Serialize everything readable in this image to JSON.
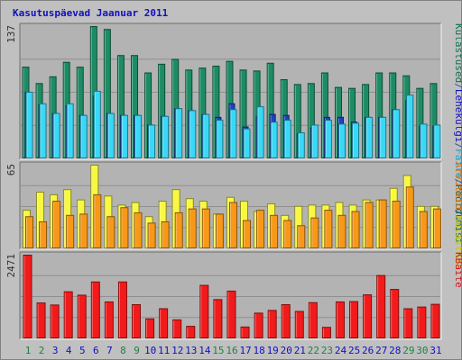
{
  "title": "Kasutuspäevad Jaanuar 2011",
  "colors": {
    "background": "#c0c0c0",
    "panel": "#b3b3b3",
    "frame_border": "#808080",
    "grid": "#909090",
    "title": "#1010c0",
    "weekday_label": "#1010c0",
    "weekend_label": "#208040"
  },
  "chart_data": [
    {
      "type": "bar",
      "panel": "top",
      "ymax_label": "137",
      "ylim": [
        0,
        137
      ],
      "categories": [
        "1",
        "2",
        "3",
        "4",
        "5",
        "6",
        "7",
        "8",
        "9",
        "10",
        "11",
        "12",
        "13",
        "14",
        "15",
        "16",
        "17",
        "18",
        "19",
        "20",
        "21",
        "22",
        "23",
        "24",
        "25",
        "26",
        "27",
        "28",
        "29",
        "30",
        "31"
      ],
      "weekend_days": [
        "1",
        "2",
        "8",
        "9",
        "15",
        "16",
        "22",
        "23",
        "29",
        "30"
      ],
      "legend_labels": [
        {
          "text": "Külastused",
          "color": "#107050"
        },
        {
          "text": "/",
          "color": "#3050a0"
        },
        {
          "text": "Lehekülgi",
          "color": "#1010c0"
        },
        {
          "text": "/",
          "color": "#3050a0"
        },
        {
          "text": "Faile",
          "color": "#20a0c0"
        },
        {
          "text": "/",
          "color": "#3050a0"
        },
        {
          "text": "Pöördumisi",
          "color": "#107050"
        }
      ],
      "series": [
        {
          "name": "Külastused",
          "color": "#1c8c64",
          "values": [
            95,
            78,
            85,
            100,
            95,
            137,
            134,
            107,
            107,
            89,
            98,
            103,
            92,
            94,
            96,
            101,
            92,
            91,
            99,
            82,
            77,
            78,
            89,
            74,
            73,
            77,
            89,
            89,
            86,
            73,
            78
          ]
        },
        {
          "name": "Lehekülgi",
          "color": "#2040c0",
          "values": [
            69,
            56,
            47,
            55,
            45,
            65,
            47,
            45,
            45,
            35,
            44,
            52,
            50,
            46,
            43,
            57,
            33,
            44,
            46,
            45,
            26,
            32,
            43,
            43,
            38,
            43,
            43,
            51,
            60,
            34,
            34
          ]
        },
        {
          "name": "Faile",
          "color": "#38d8f8",
          "values": [
            69,
            57,
            47,
            57,
            45,
            70,
            47,
            45,
            45,
            35,
            44,
            52,
            50,
            46,
            40,
            51,
            31,
            54,
            38,
            40,
            27,
            35,
            40,
            36,
            37,
            43,
            43,
            51,
            66,
            36,
            35
          ]
        }
      ]
    },
    {
      "type": "bar",
      "panel": "middle",
      "ymax_label": "65",
      "ylim": [
        0,
        65
      ],
      "categories": [
        "1",
        "2",
        "3",
        "4",
        "5",
        "6",
        "7",
        "8",
        "9",
        "10",
        "11",
        "12",
        "13",
        "14",
        "15",
        "16",
        "17",
        "18",
        "19",
        "20",
        "21",
        "22",
        "23",
        "24",
        "25",
        "26",
        "27",
        "28",
        "29",
        "30",
        "31"
      ],
      "legend_labels": [
        {
          "text": "Arvuteid",
          "color": "#d07010"
        },
        {
          "text": "/",
          "color": "#3050a0"
        },
        {
          "text": "Külastusi",
          "color": "#c8c800"
        }
      ],
      "series": [
        {
          "name": "Külastusi",
          "color": "#f8f840",
          "values": [
            30,
            44,
            42,
            46,
            38,
            65,
            41,
            34,
            36,
            25,
            37,
            46,
            39,
            37,
            27,
            40,
            37,
            29,
            35,
            26,
            33,
            34,
            34,
            36,
            34,
            38,
            38,
            47,
            57,
            33,
            33
          ]
        },
        {
          "name": "Arvuteid",
          "color": "#f89818",
          "values": [
            25,
            21,
            37,
            26,
            27,
            42,
            25,
            32,
            28,
            20,
            21,
            28,
            31,
            31,
            27,
            36,
            22,
            30,
            26,
            22,
            18,
            24,
            30,
            26,
            29,
            36,
            38,
            37,
            48,
            29,
            31
          ]
        }
      ]
    },
    {
      "type": "bar",
      "panel": "bottom",
      "ymax_label": "2471",
      "ylim": [
        0,
        2471
      ],
      "categories": [
        "1",
        "2",
        "3",
        "4",
        "5",
        "6",
        "7",
        "8",
        "9",
        "10",
        "11",
        "12",
        "13",
        "14",
        "15",
        "16",
        "17",
        "18",
        "19",
        "20",
        "21",
        "22",
        "23",
        "24",
        "25",
        "26",
        "27",
        "28",
        "29",
        "30",
        "31"
      ],
      "legend_labels": [
        {
          "text": "KBaite",
          "color": "#d01818"
        }
      ],
      "series": [
        {
          "name": "KBaite",
          "color": "#f21a1a",
          "values": [
            2471,
            1060,
            1000,
            1390,
            1290,
            1680,
            1090,
            1680,
            1010,
            590,
            890,
            560,
            370,
            1580,
            1160,
            1410,
            350,
            760,
            840,
            1010,
            810,
            1070,
            340,
            1090,
            1100,
            1300,
            1870,
            1460,
            890,
            940,
            1020
          ]
        }
      ]
    }
  ]
}
